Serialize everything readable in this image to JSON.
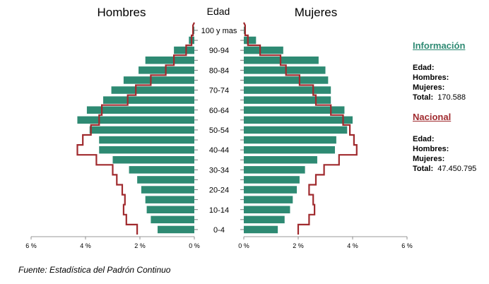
{
  "chart_data": {
    "type": "population-pyramid",
    "title_left": "Hombres",
    "title_right": "Mujeres",
    "age_axis_title": "Edad",
    "age_groups": [
      "0-4",
      "5-9",
      "10-14",
      "15-19",
      "20-24",
      "25-29",
      "30-34",
      "35-39",
      "40-44",
      "45-49",
      "50-54",
      "55-59",
      "60-64",
      "65-69",
      "70-74",
      "75-79",
      "80-84",
      "85-89",
      "90-94",
      "95-99",
      "100 y mas"
    ],
    "age_labels_shown": [
      "0-4",
      "10-14",
      "20-24",
      "30-34",
      "40-44",
      "50-54",
      "60-64",
      "70-74",
      "80-84",
      "90-94",
      "100 y mas"
    ],
    "x_unit": "%",
    "xlim": [
      0,
      6
    ],
    "x_ticks": [
      "6 %",
      "4 %",
      "2 %",
      "0 %",
      "0 %",
      "2 %",
      "4 %",
      "6 %"
    ],
    "series": [
      {
        "side": "left",
        "kind": "bar",
        "color": "#2e8a73",
        "values": [
          1.35,
          1.6,
          1.75,
          1.8,
          1.95,
          2.1,
          2.4,
          3.0,
          3.5,
          3.5,
          3.85,
          4.3,
          3.95,
          3.35,
          3.05,
          2.6,
          2.05,
          1.8,
          0.75,
          0.2,
          0.05
        ]
      },
      {
        "side": "right",
        "kind": "bar",
        "color": "#2e8a73",
        "values": [
          1.25,
          1.5,
          1.7,
          1.8,
          1.95,
          2.05,
          2.25,
          2.7,
          3.35,
          3.4,
          3.8,
          4.0,
          3.7,
          3.2,
          3.2,
          3.1,
          3.0,
          2.75,
          1.45,
          0.45,
          0.05
        ]
      },
      {
        "side": "left",
        "kind": "step",
        "color": "#a02a2e",
        "values": [
          2.1,
          2.5,
          2.6,
          2.55,
          2.65,
          2.85,
          3.0,
          3.6,
          4.3,
          4.1,
          3.8,
          3.5,
          3.4,
          2.45,
          2.15,
          1.6,
          1.05,
          0.75,
          0.3,
          0.1,
          0.05
        ]
      },
      {
        "side": "right",
        "kind": "step",
        "color": "#a02a2e",
        "values": [
          2.0,
          2.4,
          2.6,
          2.55,
          2.4,
          2.65,
          2.95,
          3.5,
          4.15,
          4.05,
          3.9,
          3.65,
          3.2,
          2.65,
          2.55,
          2.05,
          1.55,
          1.35,
          0.6,
          0.15,
          0.05
        ]
      }
    ]
  },
  "info_local": {
    "title": "Información",
    "edad_label": "Edad:",
    "hombres_label": "Hombres:",
    "mujeres_label": "Mujeres:",
    "total_label": "Total:",
    "total_value": "170.588"
  },
  "info_national": {
    "title": "Nacional",
    "edad_label": "Edad:",
    "hombres_label": "Hombres:",
    "mujeres_label": "Mujeres:",
    "total_label": "Total:",
    "total_value": "47.450.795"
  },
  "source": "Fuente: Estadística del Padrón Continuo",
  "colors": {
    "local": "#2e8a73",
    "national": "#a02a2e"
  }
}
